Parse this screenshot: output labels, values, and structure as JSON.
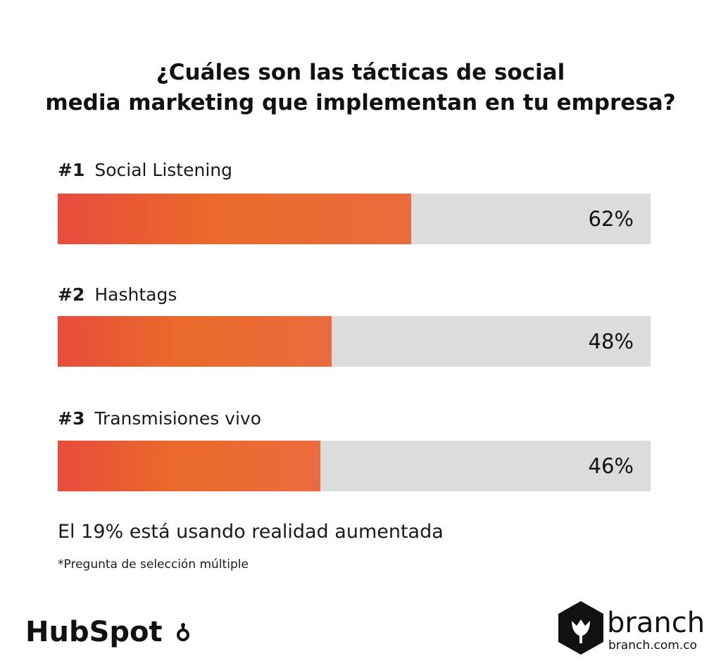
{
  "chart_data": {
    "type": "bar",
    "title_lines": [
      "¿Cuáles son las tácticas de social",
      "media marketing que implementan en tu empresa?"
    ],
    "ylim": [
      0,
      100
    ],
    "items": [
      {
        "rank": "#1",
        "label": "Social Listening",
        "value": 62,
        "value_label": "62%"
      },
      {
        "rank": "#2",
        "label": "Hashtags",
        "value": 48,
        "value_label": "48%"
      },
      {
        "rank": "#3",
        "label": "Transmisiones vivo",
        "value": 46,
        "value_label": "46%"
      }
    ],
    "annotation": "El 19% está usando realidad aumentada",
    "footnote": "*Pregunta de selección múltiple"
  },
  "colors": {
    "bar_fill": "#ea6a2a",
    "bar_track": "#dcdcdc",
    "text": "#111111"
  },
  "logos": {
    "hubspot": "HubSpot",
    "branch_name": "branch",
    "branch_url": "branch.com.co",
    "branch_icon": "tulip-hexagon-icon",
    "hubspot_icon": "sprocket-icon"
  }
}
